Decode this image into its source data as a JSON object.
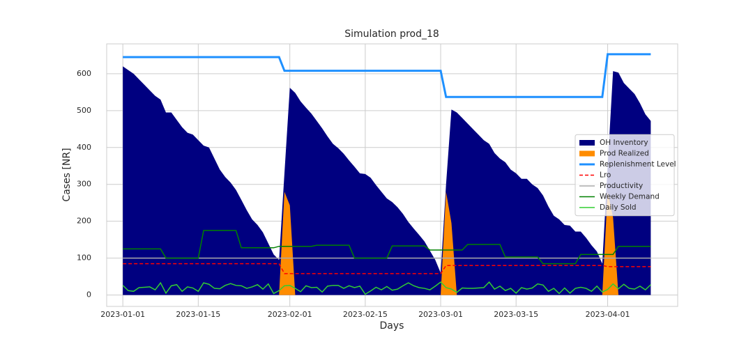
{
  "chart_data": {
    "type": "line",
    "title": "Simulation prod_18",
    "x_label": "Days",
    "y_label": "Cases [NR]",
    "x": [
      "2023-01-01",
      "2023-01-02",
      "2023-01-03",
      "2023-01-04",
      "2023-01-05",
      "2023-01-06",
      "2023-01-07",
      "2023-01-08",
      "2023-01-09",
      "2023-01-10",
      "2023-01-11",
      "2023-01-12",
      "2023-01-13",
      "2023-01-14",
      "2023-01-15",
      "2023-01-16",
      "2023-01-17",
      "2023-01-18",
      "2023-01-19",
      "2023-01-20",
      "2023-01-21",
      "2023-01-22",
      "2023-01-23",
      "2023-01-24",
      "2023-01-25",
      "2023-01-26",
      "2023-01-27",
      "2023-01-28",
      "2023-01-29",
      "2023-01-30",
      "2023-01-31",
      "2023-02-01",
      "2023-02-02",
      "2023-02-03",
      "2023-02-04",
      "2023-02-05",
      "2023-02-06",
      "2023-02-07",
      "2023-02-08",
      "2023-02-09",
      "2023-02-10",
      "2023-02-11",
      "2023-02-12",
      "2023-02-13",
      "2023-02-14",
      "2023-02-15",
      "2023-02-16",
      "2023-02-17",
      "2023-02-18",
      "2023-02-19",
      "2023-02-20",
      "2023-02-21",
      "2023-02-22",
      "2023-02-23",
      "2023-02-24",
      "2023-02-25",
      "2023-02-26",
      "2023-02-27",
      "2023-02-28",
      "2023-03-01",
      "2023-03-02",
      "2023-03-03",
      "2023-03-04",
      "2023-03-05",
      "2023-03-06",
      "2023-03-07",
      "2023-03-08",
      "2023-03-09",
      "2023-03-10",
      "2023-03-11",
      "2023-03-12",
      "2023-03-13",
      "2023-03-14",
      "2023-03-15",
      "2023-03-16",
      "2023-03-17",
      "2023-03-18",
      "2023-03-19",
      "2023-03-20",
      "2023-03-21",
      "2023-03-22",
      "2023-03-23",
      "2023-03-24",
      "2023-03-25",
      "2023-03-26",
      "2023-03-27",
      "2023-03-28",
      "2023-03-29",
      "2023-03-30",
      "2023-03-31",
      "2023-04-01",
      "2023-04-02",
      "2023-04-03",
      "2023-04-04",
      "2023-04-05",
      "2023-04-06",
      "2023-04-07",
      "2023-04-08",
      "2023-04-09"
    ],
    "xlim": [
      "2022-12-29",
      "2023-04-14"
    ],
    "xticks": [
      "2023-01-01",
      "2023-01-15",
      "2023-02-01",
      "2023-02-15",
      "2023-03-01",
      "2023-03-15",
      "2023-04-01"
    ],
    "ylim": [
      -31,
      681
    ],
    "yticks": [
      0,
      100,
      200,
      300,
      400,
      500,
      600
    ],
    "grid": true,
    "legend": "center right",
    "series": [
      {
        "name": "OH Inventory",
        "kind": "area",
        "color": "#000080",
        "values": [
          620,
          610,
          600,
          585,
          570,
          555,
          540,
          530,
          495,
          495,
          475,
          455,
          440,
          435,
          420,
          405,
          400,
          370,
          340,
          320,
          305,
          285,
          258,
          230,
          205,
          190,
          170,
          140,
          110,
          95,
          330,
          562,
          548,
          525,
          508,
          492,
          472,
          452,
          430,
          410,
          398,
          383,
          365,
          348,
          330,
          328,
          318,
          298,
          280,
          262,
          252,
          238,
          220,
          198,
          180,
          163,
          145,
          120,
          95,
          60,
          300,
          503,
          495,
          480,
          465,
          450,
          435,
          420,
          410,
          385,
          370,
          360,
          340,
          330,
          315,
          315,
          300,
          290,
          270,
          240,
          215,
          205,
          190,
          188,
          172,
          172,
          155,
          135,
          118,
          85,
          350,
          607,
          603,
          575,
          560,
          545,
          520,
          490,
          472
        ]
      },
      {
        "name": "Prod Realized",
        "kind": "area",
        "color": "#ff8c00",
        "values": [
          0,
          0,
          0,
          0,
          0,
          0,
          0,
          0,
          0,
          0,
          0,
          0,
          0,
          0,
          0,
          0,
          0,
          0,
          0,
          0,
          0,
          0,
          0,
          0,
          0,
          0,
          0,
          0,
          0,
          0,
          280,
          243,
          0,
          0,
          0,
          0,
          0,
          0,
          0,
          0,
          0,
          0,
          0,
          0,
          0,
          0,
          0,
          0,
          0,
          0,
          0,
          0,
          0,
          0,
          0,
          0,
          0,
          0,
          0,
          0,
          280,
          195,
          0,
          0,
          0,
          0,
          0,
          0,
          0,
          0,
          0,
          0,
          0,
          0,
          0,
          0,
          0,
          0,
          0,
          0,
          0,
          0,
          0,
          0,
          0,
          0,
          0,
          0,
          0,
          0,
          280,
          210,
          0,
          0,
          0,
          0,
          0,
          0,
          0
        ]
      },
      {
        "name": "Replenishment Level",
        "kind": "line",
        "color": "#1e90ff",
        "values": [
          645,
          645,
          645,
          645,
          645,
          645,
          645,
          645,
          645,
          645,
          645,
          645,
          645,
          645,
          645,
          645,
          645,
          645,
          645,
          645,
          645,
          645,
          645,
          645,
          645,
          645,
          645,
          645,
          645,
          645,
          608,
          608,
          608,
          608,
          608,
          608,
          608,
          608,
          608,
          608,
          608,
          608,
          608,
          608,
          608,
          608,
          608,
          608,
          608,
          608,
          608,
          608,
          608,
          608,
          608,
          608,
          608,
          608,
          608,
          608,
          537,
          537,
          537,
          537,
          537,
          537,
          537,
          537,
          537,
          537,
          537,
          537,
          537,
          537,
          537,
          537,
          537,
          537,
          537,
          537,
          537,
          537,
          537,
          537,
          537,
          537,
          537,
          537,
          537,
          537,
          653,
          653,
          653,
          653,
          653,
          653,
          653,
          653,
          653
        ]
      },
      {
        "name": "Lro",
        "kind": "line",
        "style": "dashed",
        "color": "#ff0000",
        "values": [
          85,
          85,
          85,
          85,
          85,
          85,
          85,
          85,
          85,
          85,
          85,
          85,
          85,
          85,
          85,
          85,
          85,
          85,
          85,
          85,
          85,
          85,
          85,
          85,
          85,
          85,
          85,
          85,
          85,
          85,
          58,
          58,
          58,
          58,
          58,
          58,
          58,
          58,
          58,
          58,
          58,
          58,
          58,
          58,
          58,
          58,
          58,
          58,
          58,
          58,
          58,
          58,
          58,
          58,
          58,
          58,
          58,
          58,
          58,
          58,
          80,
          80,
          80,
          80,
          80,
          80,
          80,
          80,
          80,
          80,
          80,
          80,
          80,
          80,
          80,
          80,
          80,
          80,
          80,
          80,
          80,
          80,
          80,
          80,
          80,
          80,
          80,
          80,
          80,
          80,
          77,
          77,
          77,
          77,
          77,
          77,
          77,
          77,
          77
        ]
      },
      {
        "name": "Productivity",
        "kind": "line",
        "color": "#aaaaaa",
        "values": [
          100,
          100,
          100,
          100,
          100,
          100,
          100,
          100,
          100,
          100,
          100,
          100,
          100,
          100,
          100,
          100,
          100,
          100,
          100,
          100,
          100,
          100,
          100,
          100,
          100,
          100,
          100,
          100,
          100,
          100,
          100,
          100,
          100,
          100,
          100,
          100,
          100,
          100,
          100,
          100,
          100,
          100,
          100,
          100,
          100,
          100,
          100,
          100,
          100,
          100,
          100,
          100,
          100,
          100,
          100,
          100,
          100,
          100,
          100,
          100,
          100,
          100,
          100,
          100,
          100,
          100,
          100,
          100,
          100,
          100,
          100,
          100,
          100,
          100,
          100,
          100,
          100,
          100,
          100,
          100,
          100,
          100,
          100,
          100,
          100,
          100,
          100,
          100,
          100,
          100,
          100,
          100,
          100,
          100,
          100,
          100,
          100,
          100,
          100
        ]
      },
      {
        "name": "Weekly Demand",
        "kind": "line",
        "color": "#008000",
        "values": [
          125,
          125,
          125,
          125,
          125,
          125,
          125,
          125,
          100,
          100,
          100,
          100,
          100,
          100,
          100,
          175,
          175,
          175,
          175,
          175,
          175,
          175,
          128,
          128,
          128,
          128,
          128,
          128,
          128,
          132,
          132,
          132,
          132,
          132,
          132,
          132,
          135,
          135,
          135,
          135,
          135,
          135,
          135,
          100,
          100,
          100,
          100,
          100,
          100,
          100,
          133,
          133,
          133,
          133,
          133,
          133,
          133,
          122,
          122,
          122,
          122,
          122,
          122,
          122,
          137,
          137,
          137,
          137,
          137,
          137,
          137,
          103,
          103,
          103,
          103,
          103,
          103,
          103,
          85,
          85,
          85,
          85,
          85,
          85,
          85,
          110,
          110,
          110,
          110,
          110,
          110,
          110,
          132,
          132,
          132,
          132,
          132,
          132,
          132
        ]
      },
      {
        "name": "Daily Sold",
        "kind": "line",
        "color": "#32cd32",
        "values": [
          26,
          12,
          10,
          20,
          21,
          22,
          14,
          33,
          5,
          25,
          28,
          10,
          22,
          19,
          10,
          33,
          29,
          18,
          17,
          26,
          31,
          26,
          25,
          18,
          22,
          28,
          16,
          30,
          4,
          12,
          25,
          26,
          18,
          9,
          25,
          20,
          21,
          8,
          24,
          26,
          26,
          18,
          25,
          20,
          24,
          2,
          11,
          21,
          14,
          23,
          13,
          16,
          25,
          33,
          25,
          20,
          18,
          14,
          24,
          35,
          20,
          16,
          7,
          19,
          18,
          18,
          19,
          20,
          35,
          16,
          24,
          12,
          18,
          5,
          20,
          16,
          19,
          30,
          27,
          10,
          18,
          4,
          19,
          5,
          18,
          21,
          18,
          10,
          24,
          8,
          15,
          30,
          17,
          29,
          18,
          16,
          24,
          14,
          28
        ]
      }
    ]
  }
}
